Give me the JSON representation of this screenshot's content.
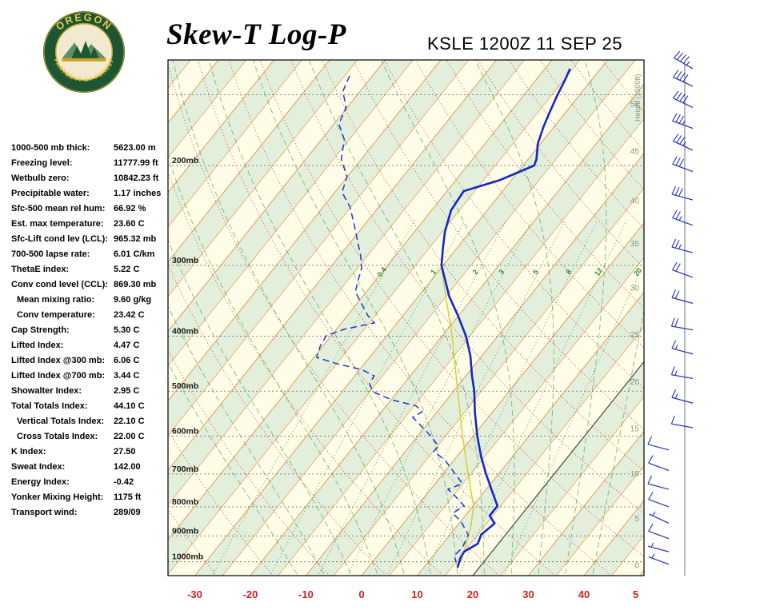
{
  "header": {
    "title": "Skew-T Log-P",
    "station": "KSLE 1200Z 11 SEP 25",
    "logo": {
      "top_text": "OREGON",
      "bottom_text": "DEPARTMENT OF FORESTRY"
    }
  },
  "indices": [
    {
      "label": "1000-500 mb thick:",
      "value": "5623.00 m",
      "indent": false
    },
    {
      "label": "Freezing level:",
      "value": "11777.99 ft",
      "indent": false
    },
    {
      "label": "Wetbulb zero:",
      "value": "10842.23 ft",
      "indent": false
    },
    {
      "label": "Precipitable water:",
      "value": "1.17 inches",
      "indent": false
    },
    {
      "label": "Sfc-500 mean rel hum:",
      "value": "66.92 %",
      "indent": false
    },
    {
      "label": "Est. max temperature:",
      "value": "23.60 C",
      "indent": false
    },
    {
      "label": "Sfc-Lift cond lev (LCL):",
      "value": "965.32 mb",
      "indent": false
    },
    {
      "label": "700-500 lapse rate:",
      "value": "6.01 C/km",
      "indent": false
    },
    {
      "label": "ThetaE index:",
      "value": "5.22 C",
      "indent": false
    },
    {
      "label": "Conv cond level (CCL):",
      "value": "869.30 mb",
      "indent": false
    },
    {
      "label": "Mean mixing ratio:",
      "value": "9.60 g/kg",
      "indent": true
    },
    {
      "label": "Conv temperature:",
      "value": "23.42 C",
      "indent": true
    },
    {
      "label": "Cap Strength:",
      "value": "5.30 C",
      "indent": false
    },
    {
      "label": "Lifted Index:",
      "value": "4.47 C",
      "indent": false
    },
    {
      "label": "Lifted Index @300 mb:",
      "value": "6.06 C",
      "indent": false
    },
    {
      "label": "Lifted Index @700 mb:",
      "value": "3.44 C",
      "indent": false
    },
    {
      "label": "Showalter Index:",
      "value": "2.95 C",
      "indent": false
    },
    {
      "label": "Total Totals Index:",
      "value": "44.10 C",
      "indent": false
    },
    {
      "label": "Vertical Totals Index:",
      "value": "22.10 C",
      "indent": true
    },
    {
      "label": "Cross Totals Index:",
      "value": "22.00 C",
      "indent": true
    },
    {
      "label": "K Index:",
      "value": "27.50",
      "indent": false
    },
    {
      "label": "Sweat Index:",
      "value": "142.00",
      "indent": false
    },
    {
      "label": "Energy Index:",
      "value": "-0.42",
      "indent": false
    },
    {
      "label": "Yonker Mixing Height:",
      "value": "1175 ft",
      "indent": false
    },
    {
      "label": "Transport wind:",
      "value": "289/09",
      "indent": false
    }
  ],
  "chart_data": {
    "type": "skew-t-log-p",
    "x_axis": {
      "unit": "C",
      "ticks": [
        {
          "value": -30,
          "label": "-30"
        },
        {
          "value": -20,
          "label": "-20"
        },
        {
          "value": -10,
          "label": "-10"
        },
        {
          "value": 0,
          "label": "0"
        },
        {
          "value": 10,
          "label": "10"
        },
        {
          "value": 20,
          "label": "20"
        },
        {
          "value": 30,
          "label": "30"
        },
        {
          "value": 40,
          "label": "40"
        },
        {
          "value": 49.3,
          "label": "5"
        }
      ]
    },
    "pressure_levels": {
      "lines": [
        150,
        200,
        300,
        400,
        500,
        600,
        700,
        800,
        900,
        1000
      ],
      "labels": [
        {
          "p": 200,
          "text": "200mb"
        },
        {
          "p": 300,
          "text": "300mb"
        },
        {
          "p": 400,
          "text": "400mb"
        },
        {
          "p": 500,
          "text": "500mb"
        },
        {
          "p": 600,
          "text": "600mb"
        },
        {
          "p": 700,
          "text": "700mb"
        },
        {
          "p": 800,
          "text": "800mb"
        },
        {
          "p": 900,
          "text": "900mb"
        },
        {
          "p": 1000,
          "text": "1000mb"
        }
      ]
    },
    "height_axis": {
      "title": "Height (1000ft)",
      "ticks": [
        {
          "label": "50",
          "p": 156
        },
        {
          "label": "45",
          "p": 189
        },
        {
          "label": "40",
          "p": 231
        },
        {
          "label": "35",
          "p": 275
        },
        {
          "label": "30",
          "p": 329
        },
        {
          "label": "25",
          "p": 398
        },
        {
          "label": "20",
          "p": 482
        },
        {
          "label": "15",
          "p": 583
        },
        {
          "label": "10",
          "p": 700
        },
        {
          "label": "5",
          "p": 840
        },
        {
          "label": "0",
          "p": 1015
        }
      ]
    },
    "isotherms": {
      "min": -120,
      "max": 55,
      "step": 5,
      "highlight": 20
    },
    "dry_adiabats": {
      "min": -30,
      "max": 160,
      "step": 10
    },
    "moist_adiabats": {
      "min": -15,
      "max": 40,
      "step": 5
    },
    "mixing_ratio_lines": {
      "values": [
        0.4,
        1,
        2,
        3,
        5,
        8,
        12,
        20
      ],
      "label_pressure": 310
    },
    "temperature_profile": [
      [
        135,
        -35.5
      ],
      [
        141,
        -34.8
      ],
      [
        151,
        -33.9
      ],
      [
        161,
        -32.9
      ],
      [
        171,
        -31.9
      ],
      [
        183,
        -30.5
      ],
      [
        195,
        -28.5
      ],
      [
        200,
        -28.0
      ],
      [
        212,
        -32.0
      ],
      [
        222,
        -37.0
      ],
      [
        240,
        -36.5
      ],
      [
        262,
        -34.5
      ],
      [
        280,
        -32.5
      ],
      [
        300,
        -30.3
      ],
      [
        318,
        -27.6
      ],
      [
        340,
        -24.5
      ],
      [
        368,
        -20.1
      ],
      [
        400,
        -15.7
      ],
      [
        433,
        -12.1
      ],
      [
        470,
        -8.9
      ],
      [
        500,
        -6.3
      ],
      [
        544,
        -3.2
      ],
      [
        600,
        0.7
      ],
      [
        650,
        4.2
      ],
      [
        698,
        7.6
      ],
      [
        752,
        11.4
      ],
      [
        797,
        14.4
      ],
      [
        829,
        14.4
      ],
      [
        856,
        16.4
      ],
      [
        896,
        15.6
      ],
      [
        929,
        16.3
      ],
      [
        960,
        15.0
      ],
      [
        982,
        15.2
      ],
      [
        1001,
        15.6
      ],
      [
        1024,
        16.1
      ]
    ],
    "dewpoint_profile": [
      [
        139,
        -74.1
      ],
      [
        148,
        -73.1
      ],
      [
        158,
        -70.2
      ],
      [
        169,
        -69.1
      ],
      [
        180,
        -65.9
      ],
      [
        195,
        -63.6
      ],
      [
        209,
        -60.1
      ],
      [
        223,
        -58.7
      ],
      [
        237,
        -55.1
      ],
      [
        253,
        -52.1
      ],
      [
        270,
        -49.2
      ],
      [
        288,
        -46.3
      ],
      [
        303,
        -44.3
      ],
      [
        318,
        -43.2
      ],
      [
        334,
        -42.0
      ],
      [
        351,
        -39.1
      ],
      [
        368,
        -36.3
      ],
      [
        379,
        -34.1
      ],
      [
        389,
        -38.6
      ],
      [
        399,
        -40.9
      ],
      [
        416,
        -40.5
      ],
      [
        436,
        -39.5
      ],
      [
        447,
        -35.1
      ],
      [
        458,
        -29.7
      ],
      [
        470,
        -26.5
      ],
      [
        485,
        -26.2
      ],
      [
        501,
        -24.5
      ],
      [
        518,
        -19.9
      ],
      [
        531,
        -14.6
      ],
      [
        544,
        -12.7
      ],
      [
        556,
        -13.6
      ],
      [
        571,
        -11.5
      ],
      [
        599,
        -7.8
      ],
      [
        625,
        -4.8
      ],
      [
        639,
        -4.9
      ],
      [
        661,
        -1.7
      ],
      [
        698,
        2.0
      ],
      [
        728,
        4.9
      ],
      [
        745,
        3.1
      ],
      [
        764,
        5.2
      ],
      [
        797,
        8.4
      ],
      [
        821,
        7.4
      ],
      [
        848,
        10.0
      ],
      [
        896,
        13.3
      ],
      [
        944,
        14.1
      ],
      [
        975,
        13.8
      ],
      [
        1001,
        15.0
      ]
    ],
    "parcel_profile": [
      [
        1004,
        16.0
      ],
      [
        870,
        12.7
      ],
      [
        797,
        10.1
      ],
      [
        698,
        4.4
      ],
      [
        599,
        -2.0
      ],
      [
        501,
        -9.2
      ],
      [
        399,
        -18.3
      ],
      [
        300,
        -30.4
      ]
    ],
    "wind_barbs": [
      {
        "p": 135,
        "dir": 300,
        "spd": 45
      },
      {
        "p": 145,
        "dir": 295,
        "spd": 40
      },
      {
        "p": 158,
        "dir": 295,
        "spd": 40
      },
      {
        "p": 172,
        "dir": 290,
        "spd": 35
      },
      {
        "p": 188,
        "dir": 295,
        "spd": 35
      },
      {
        "p": 205,
        "dir": 290,
        "spd": 30
      },
      {
        "p": 230,
        "dir": 285,
        "spd": 30
      },
      {
        "p": 255,
        "dir": 290,
        "spd": 25
      },
      {
        "p": 285,
        "dir": 285,
        "spd": 25
      },
      {
        "p": 315,
        "dir": 290,
        "spd": 20
      },
      {
        "p": 350,
        "dir": 285,
        "spd": 20
      },
      {
        "p": 390,
        "dir": 280,
        "spd": 20
      },
      {
        "p": 430,
        "dir": 285,
        "spd": 15
      },
      {
        "p": 475,
        "dir": 280,
        "spd": 15
      },
      {
        "p": 525,
        "dir": 285,
        "spd": 15
      },
      {
        "p": 580,
        "dir": 280,
        "spd": 10
      },
      {
        "p": 635,
        "dir": 285,
        "spd": 10
      },
      {
        "p": 690,
        "dir": 290,
        "spd": 10
      },
      {
        "p": 745,
        "dir": 285,
        "spd": 10
      },
      {
        "p": 800,
        "dir": 290,
        "spd": 10
      },
      {
        "p": 855,
        "dir": 295,
        "spd": 5
      },
      {
        "p": 910,
        "dir": 290,
        "spd": 10
      },
      {
        "p": 960,
        "dir": 285,
        "spd": 5
      },
      {
        "p": 1010,
        "dir": 290,
        "spd": 5
      }
    ],
    "colors": {
      "background": "#fffde7",
      "band": "#e3efdb",
      "isotherm": "#e09040",
      "isotherm_highlight": "#3f3f3f",
      "dry_adiabat": "#c64a4a",
      "moist_adiabat": "#4d9e55",
      "mixing_ratio": "#2f8f3c",
      "pressure_line": "#666666",
      "pressure_label": "#1a1a1a",
      "height_label": "#8a9a85",
      "temp_trace": "#1228c8",
      "dew_trace": "#1a35d0",
      "parcel_trace": "#d8ca30",
      "x_label": "#cc2222",
      "wind_barb": "#2230c0",
      "frame": "#000000"
    }
  }
}
